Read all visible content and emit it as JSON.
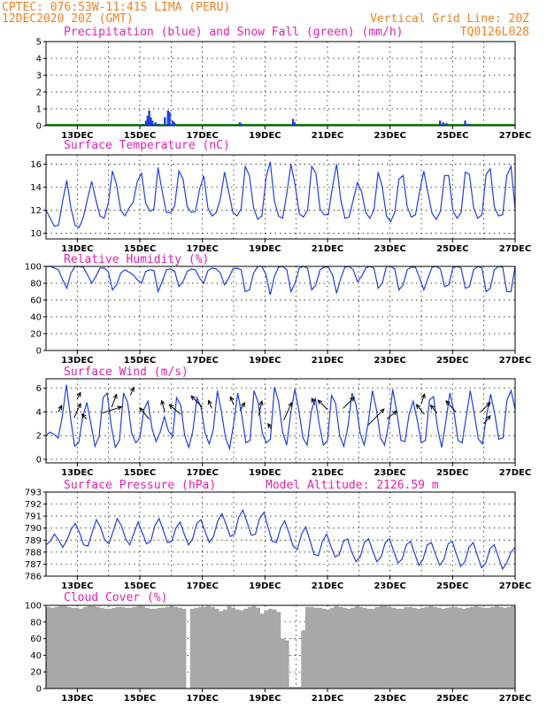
{
  "header": {
    "line1_left": "CPTEC:  076:53W-11:41S  LIMA (PERU)",
    "line2_left": "12DEC2020 20Z (GMT)",
    "line1_right": "Vertical Grid Line: 20Z",
    "line2_right": "TQ0126L028"
  },
  "colors": {
    "header": "#f08020",
    "title": "#e020b0",
    "line": "#2040e0",
    "snow": "#20a020",
    "cloud": "#a8a8a8"
  },
  "chart_data": [
    {
      "type": "bar",
      "title": "Precipitation (blue) and Snow Fall (green) (mm/h)",
      "ylim": [
        0,
        5
      ],
      "yticks": [
        "0",
        "1",
        "2",
        "3",
        "4",
        "5"
      ],
      "xticks": [
        "13DEC",
        "15DEC",
        "17DEC",
        "19DEC",
        "21DEC",
        "23DEC",
        "25DEC",
        "27DEC"
      ],
      "xlim_days": [
        0,
        15
      ],
      "series": [
        {
          "name": "Precipitation",
          "points": [
            [
              3.1,
              0.1
            ],
            [
              3.2,
              0.3
            ],
            [
              3.25,
              0.6
            ],
            [
              3.3,
              0.9
            ],
            [
              3.35,
              0.5
            ],
            [
              3.4,
              0.3
            ],
            [
              3.5,
              0.2
            ],
            [
              3.6,
              0.1
            ],
            [
              3.8,
              0.5
            ],
            [
              3.9,
              0.9
            ],
            [
              3.95,
              0.8
            ],
            [
              4.05,
              0.3
            ],
            [
              4.1,
              0.2
            ],
            [
              6.2,
              0.2
            ],
            [
              6.25,
              0.1
            ],
            [
              7.9,
              0.4
            ],
            [
              7.95,
              0.2
            ],
            [
              12.6,
              0.3
            ],
            [
              12.7,
              0.2
            ],
            [
              12.8,
              0.15
            ],
            [
              13.4,
              0.3
            ],
            [
              13.5,
              0.1
            ]
          ]
        },
        {
          "name": "Snow Fall",
          "points": []
        }
      ]
    },
    {
      "type": "line",
      "title": "Surface Temperature (nC)",
      "ylim": [
        9.5,
        16.8
      ],
      "yticks": [
        "10",
        "12",
        "14",
        "16"
      ],
      "xticks": [
        "13DEC",
        "15DEC",
        "17DEC",
        "19DEC",
        "21DEC",
        "23DEC",
        "25DEC",
        "27DEC"
      ],
      "values": [
        12.0,
        11.3,
        10.6,
        10.7,
        12.8,
        14.6,
        12.2,
        10.7,
        10.5,
        11.4,
        13.0,
        14.5,
        12.9,
        11.5,
        11.3,
        12.6,
        15.4,
        14.2,
        12.0,
        11.5,
        12.2,
        12.7,
        14.5,
        15.2,
        12.6,
        11.9,
        12.1,
        15.7,
        13.6,
        11.8,
        11.8,
        12.4,
        15.4,
        14.7,
        12.3,
        11.8,
        11.9,
        13.8,
        15.0,
        12.2,
        11.5,
        11.8,
        13.0,
        15.3,
        13.6,
        11.8,
        11.5,
        12.1,
        15.8,
        15.0,
        12.2,
        11.2,
        11.5,
        14.8,
        16.2,
        12.8,
        11.5,
        11.3,
        13.4,
        16.0,
        14.2,
        11.7,
        11.4,
        12.0,
        15.8,
        15.2,
        12.1,
        11.6,
        11.6,
        14.0,
        16.0,
        12.9,
        11.3,
        11.4,
        12.9,
        14.4,
        13.6,
        11.8,
        11.3,
        12.0,
        15.3,
        14.0,
        11.5,
        11.0,
        11.8,
        14.7,
        15.0,
        12.3,
        11.4,
        11.6,
        13.6,
        15.4,
        13.5,
        11.7,
        11.2,
        11.9,
        15.0,
        15.0,
        12.0,
        11.3,
        11.8,
        15.3,
        15.1,
        12.2,
        11.3,
        11.6,
        15.1,
        15.6,
        12.3,
        11.5,
        11.6,
        15.0,
        15.8,
        12.1
      ],
      "xlim_days": [
        0,
        15
      ]
    },
    {
      "type": "line",
      "title": "Relative Humidity (%)",
      "ylim": [
        0,
        100
      ],
      "yticks": [
        "0",
        "20",
        "40",
        "60",
        "80",
        "100"
      ],
      "xticks": [
        "13DEC",
        "15DEC",
        "17DEC",
        "19DEC",
        "21DEC",
        "23DEC",
        "25DEC",
        "27DEC"
      ],
      "values": [
        100,
        100,
        98,
        96,
        84,
        74,
        92,
        100,
        100,
        99,
        90,
        80,
        88,
        98,
        98,
        94,
        72,
        78,
        92,
        96,
        93,
        90,
        84,
        80,
        94,
        96,
        95,
        70,
        82,
        96,
        97,
        94,
        76,
        82,
        94,
        97,
        96,
        86,
        80,
        95,
        98,
        97,
        92,
        78,
        86,
        97,
        98,
        96,
        70,
        72,
        92,
        100,
        100,
        90,
        66,
        88,
        99,
        100,
        96,
        70,
        80,
        98,
        100,
        98,
        72,
        78,
        96,
        99,
        99,
        90,
        68,
        86,
        99,
        100,
        96,
        82,
        88,
        98,
        100,
        98,
        74,
        80,
        100,
        100,
        97,
        72,
        78,
        96,
        99,
        99,
        86,
        72,
        86,
        99,
        100,
        97,
        76,
        78,
        98,
        100,
        98,
        74,
        76,
        96,
        100,
        98,
        70,
        74,
        96,
        100,
        99,
        70,
        70,
        100
      ],
      "xlim_days": [
        0,
        15
      ]
    },
    {
      "type": "line",
      "title": "Surface Wind (m/s)",
      "ylim": [
        -0.3,
        6.8
      ],
      "yticks": [
        "0",
        "2",
        "4",
        "6"
      ],
      "xticks": [
        "13DEC",
        "15DEC",
        "17DEC",
        "19DEC",
        "21DEC",
        "23DEC",
        "25DEC",
        "27DEC"
      ],
      "values": [
        2.0,
        2.3,
        2.1,
        1.8,
        3.6,
        6.3,
        3.5,
        1.1,
        1.4,
        3.6,
        4.8,
        3.0,
        1.1,
        1.9,
        5.2,
        5.6,
        2.8,
        1.0,
        1.6,
        5.6,
        4.8,
        2.2,
        1.4,
        1.8,
        4.2,
        4.9,
        2.6,
        1.5,
        2.3,
        3.6,
        2.4,
        1.9,
        5.2,
        4.6,
        2.0,
        1.0,
        2.4,
        5.2,
        4.4,
        2.2,
        1.3,
        2.5,
        5.8,
        4.0,
        1.8,
        0.9,
        3.0,
        5.6,
        3.7,
        1.4,
        1.6,
        5.8,
        4.8,
        2.2,
        1.4,
        1.7,
        6.1,
        4.9,
        2.3,
        1.2,
        3.9,
        5.9,
        4.1,
        1.8,
        1.2,
        4.0,
        5.2,
        2.9,
        1.2,
        1.6,
        5.4,
        4.7,
        2.0,
        1.1,
        2.7,
        5.6,
        4.6,
        2.2,
        1.2,
        3.1,
        5.8,
        4.2,
        1.8,
        1.2,
        3.0,
        5.9,
        4.0,
        1.6,
        1.5,
        3.8,
        4.9,
        3.3,
        1.4,
        1.6,
        5.0,
        5.3,
        2.6,
        1.0,
        3.2,
        5.6,
        4.0,
        1.6,
        1.4,
        3.6,
        5.8,
        3.8,
        1.7,
        1.3,
        3.7,
        5.5,
        3.8,
        1.7,
        1.8,
        5.0,
        5.8,
        4.2
      ],
      "xlim_days": [
        0,
        15
      ],
      "arrows": [
        [
          0.4,
          4.0,
          0.2,
          0.4
        ],
        [
          0.9,
          3.5,
          0.4,
          0.9
        ],
        [
          1.0,
          5.1,
          0.2,
          0.4
        ],
        [
          1.3,
          3.4,
          -0.3,
          0.3
        ],
        [
          1.8,
          3.9,
          1.2,
          0.4
        ],
        [
          2.1,
          4.4,
          0.3,
          0.8
        ],
        [
          2.7,
          5.4,
          0.2,
          0.5
        ],
        [
          3.3,
          3.4,
          -0.6,
          0.7
        ],
        [
          3.8,
          4.0,
          -0.2,
          0.7
        ],
        [
          4.3,
          3.8,
          -0.7,
          0.6
        ],
        [
          5.0,
          4.4,
          -0.7,
          0.7
        ],
        [
          5.3,
          4.3,
          -0.2,
          0.5
        ],
        [
          6.0,
          4.6,
          -0.2,
          0.5
        ],
        [
          6.2,
          4.1,
          0.3,
          0.5
        ],
        [
          6.8,
          3.7,
          0.2,
          0.9
        ],
        [
          7.2,
          2.6,
          -0.2,
          0.3
        ],
        [
          7.6,
          3.3,
          0.5,
          1.1
        ],
        [
          8.6,
          4.6,
          -0.2,
          0.4
        ],
        [
          9.0,
          4.2,
          -0.6,
          0.6
        ],
        [
          9.5,
          4.3,
          0.7,
          0.7
        ],
        [
          10.3,
          2.9,
          1.0,
          1.0
        ],
        [
          10.9,
          3.4,
          0.6,
          0.5
        ],
        [
          12.0,
          4.7,
          0.2,
          0.6
        ],
        [
          12.1,
          3.8,
          -0.5,
          0.6
        ],
        [
          12.5,
          3.9,
          -0.4,
          0.5
        ],
        [
          13.1,
          4.0,
          -0.6,
          0.7
        ],
        [
          13.9,
          4.0,
          0.6,
          0.6
        ],
        [
          14.0,
          3.0,
          0.4,
          0.5
        ]
      ]
    },
    {
      "type": "line",
      "title": "Surface Pressure (hPa)",
      "annotation": "Model Altitude: 2126.59 m",
      "ylim": [
        786,
        793
      ],
      "yticks": [
        "786",
        "787",
        "788",
        "789",
        "790",
        "791",
        "792",
        "793"
      ],
      "xticks": [
        "13DEC",
        "15DEC",
        "17DEC",
        "19DEC",
        "21DEC",
        "23DEC",
        "25DEC",
        "27DEC"
      ],
      "values": [
        788.6,
        788.9,
        789.5,
        789.0,
        788.4,
        789.0,
        789.9,
        790.4,
        789.6,
        788.6,
        788.5,
        789.6,
        790.7,
        790.1,
        789.0,
        788.7,
        789.7,
        790.8,
        790.2,
        789.1,
        788.6,
        789.6,
        790.5,
        789.6,
        788.7,
        788.9,
        790.2,
        790.8,
        789.8,
        788.8,
        788.9,
        790.0,
        790.5,
        789.5,
        788.6,
        789.1,
        790.4,
        790.7,
        789.7,
        788.8,
        789.3,
        790.6,
        791.2,
        790.3,
        789.3,
        789.5,
        790.9,
        791.5,
        790.5,
        789.4,
        789.5,
        790.8,
        791.3,
        790.1,
        788.9,
        788.8,
        790.0,
        790.6,
        789.6,
        788.5,
        788.2,
        789.5,
        790.1,
        789.0,
        787.8,
        787.7,
        788.9,
        789.5,
        788.5,
        787.6,
        787.8,
        788.9,
        789.1,
        788.0,
        787.2,
        787.6,
        788.8,
        789.1,
        788.1,
        787.2,
        787.6,
        788.8,
        789.1,
        788.1,
        787.1,
        787.4,
        788.6,
        788.9,
        787.9,
        786.9,
        787.4,
        788.6,
        788.8,
        787.8,
        786.9,
        787.4,
        788.7,
        788.9,
        787.8,
        786.8,
        787.2,
        788.4,
        788.8,
        787.7,
        786.7,
        787.1,
        788.3,
        788.6,
        787.6,
        786.6,
        787.1,
        788.0,
        788.4
      ],
      "xlim_days": [
        0,
        15
      ]
    },
    {
      "type": "area",
      "title": "Cloud Cover (%)",
      "ylim": [
        0,
        100
      ],
      "yticks": [
        "0",
        "20",
        "40",
        "60",
        "80",
        "100"
      ],
      "xticks": [
        "13DEC",
        "15DEC",
        "17DEC",
        "19DEC",
        "21DEC",
        "23DEC",
        "25DEC",
        "27DEC"
      ],
      "values": [
        98,
        97,
        98,
        99,
        99,
        98,
        97,
        97,
        96,
        98,
        99,
        99,
        98,
        97,
        96,
        96,
        97,
        98,
        98,
        97,
        97,
        98,
        99,
        99,
        97,
        96,
        96,
        97,
        97,
        98,
        99,
        98,
        97,
        96,
        0,
        96,
        97,
        98,
        98,
        99,
        98,
        96,
        93,
        95,
        99,
        97,
        95,
        94,
        96,
        98,
        99,
        97,
        90,
        94,
        96,
        95,
        92,
        60,
        58,
        2,
        2,
        2,
        70,
        98,
        98,
        97,
        97,
        96,
        95,
        97,
        99,
        98,
        97,
        96,
        97,
        99,
        98,
        97,
        96,
        96,
        98,
        99,
        99,
        98,
        97,
        96,
        96,
        98,
        98,
        97,
        96,
        97,
        98,
        99,
        98,
        97,
        96,
        97,
        98,
        98,
        97,
        96,
        97,
        98,
        99,
        98,
        97,
        97,
        98,
        99,
        98,
        97,
        98,
        99
      ],
      "xlim_days": [
        0,
        15
      ]
    }
  ]
}
